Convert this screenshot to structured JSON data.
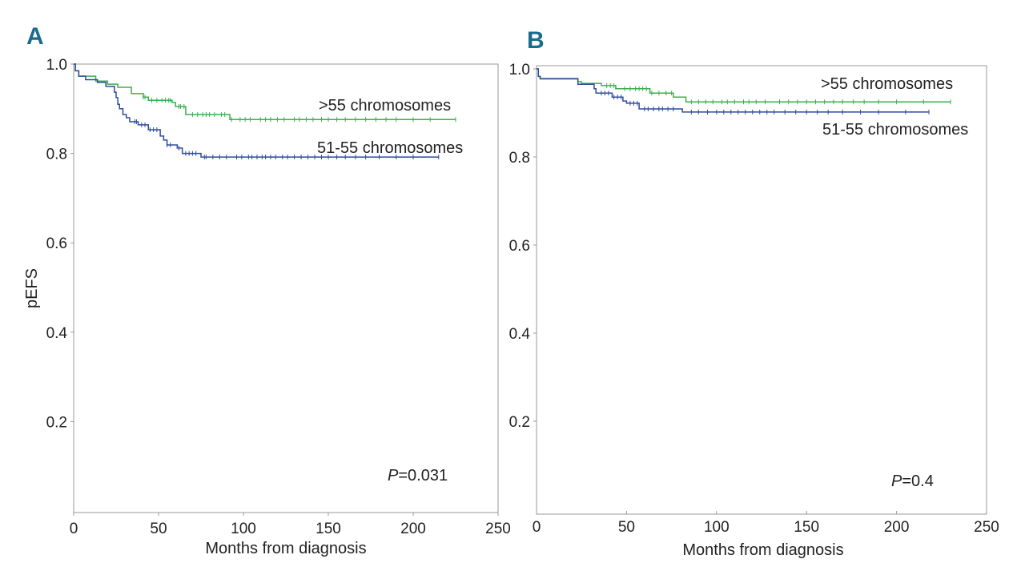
{
  "colors": {
    "green": "#3daf4e",
    "blue": "#2f4c9e",
    "panel_label": "#1b6c8c",
    "axis": "#999999"
  },
  "chart_data": [
    {
      "type": "line",
      "subtype": "kaplan-meier",
      "panel_label": "A",
      "xlabel": "Months from diagnosis",
      "ylabel": "pEFS",
      "xlim": [
        0,
        250
      ],
      "ylim": [
        0,
        1
      ],
      "xticks": [
        "0",
        "50",
        "100",
        "150",
        "200",
        "250"
      ],
      "yticks": [
        "0.2",
        "0.4",
        "0.6",
        "0.8",
        "1.0"
      ],
      "pvalue_prefix": "P",
      "pvalue_text": "=0.031",
      "series": [
        {
          "name": ">55 chromosomes",
          "color": "green",
          "steps": [
            [
              0,
              1.0
            ],
            [
              1,
              0.985
            ],
            [
              3,
              0.973
            ],
            [
              13,
              0.962
            ],
            [
              20,
              0.955
            ],
            [
              26,
              0.948
            ],
            [
              34,
              0.934
            ],
            [
              41,
              0.926
            ],
            [
              44,
              0.919
            ],
            [
              58,
              0.914
            ],
            [
              60,
              0.905
            ],
            [
              66,
              0.887
            ],
            [
              92,
              0.876
            ]
          ],
          "end": 225,
          "censored": [
            41,
            42,
            46,
            49,
            52,
            54,
            56,
            57,
            62,
            63,
            65,
            70,
            73,
            76,
            78,
            80,
            83,
            87,
            89,
            93,
            98,
            101,
            104,
            110,
            113,
            116,
            120,
            124,
            130,
            133,
            137,
            141,
            146,
            150,
            155,
            160,
            166,
            172,
            178,
            184,
            190,
            200,
            210,
            225
          ]
        },
        {
          "name": "51-55 chromosomes",
          "color": "blue",
          "steps": [
            [
              0,
              1.0
            ],
            [
              1,
              0.985
            ],
            [
              3,
              0.973
            ],
            [
              7,
              0.965
            ],
            [
              14,
              0.959
            ],
            [
              19,
              0.95
            ],
            [
              24,
              0.937
            ],
            [
              25,
              0.925
            ],
            [
              26,
              0.91
            ],
            [
              27,
              0.9
            ],
            [
              29,
              0.887
            ],
            [
              31,
              0.88
            ],
            [
              33,
              0.871
            ],
            [
              38,
              0.864
            ],
            [
              44,
              0.853
            ],
            [
              51,
              0.839
            ],
            [
              53,
              0.83
            ],
            [
              55,
              0.819
            ],
            [
              61,
              0.812
            ],
            [
              64,
              0.8
            ],
            [
              75,
              0.792
            ]
          ],
          "end": 215,
          "censored": [
            36,
            37,
            40,
            42,
            45,
            47,
            49,
            55,
            57,
            62,
            66,
            68,
            70,
            72,
            77,
            78,
            82,
            86,
            90,
            96,
            99,
            103,
            105,
            108,
            111,
            113,
            116,
            119,
            123,
            126,
            130,
            134,
            138,
            142,
            146,
            150,
            155,
            160,
            166,
            172,
            180,
            190,
            200,
            215
          ]
        }
      ]
    },
    {
      "type": "line",
      "subtype": "kaplan-meier",
      "panel_label": "B",
      "xlabel": "Months from diagnosis",
      "ylabel": "",
      "xlim": [
        0,
        250
      ],
      "ylim": [
        0,
        1
      ],
      "xticks": [
        "0",
        "50",
        "100",
        "150",
        "200",
        "250"
      ],
      "yticks": [
        "0.2",
        "0.4",
        "0.6",
        "0.8",
        "1.0"
      ],
      "pvalue_prefix": "P",
      "pvalue_text": "=0.4",
      "series": [
        {
          "name": ">55 chromosomes",
          "color": "green",
          "steps": [
            [
              0,
              1.0
            ],
            [
              1,
              0.983
            ],
            [
              2,
              0.977
            ],
            [
              23,
              0.971
            ],
            [
              25,
              0.967
            ],
            [
              36,
              0.962
            ],
            [
              44,
              0.955
            ],
            [
              63,
              0.945
            ],
            [
              76,
              0.936
            ],
            [
              83,
              0.925
            ]
          ],
          "end": 230,
          "censored": [
            39,
            41,
            43,
            49,
            52,
            55,
            57,
            59,
            61,
            64,
            68,
            72,
            75,
            86,
            90,
            94,
            98,
            103,
            106,
            110,
            115,
            118,
            122,
            127,
            135,
            140,
            145,
            150,
            155,
            160,
            165,
            170,
            176,
            182,
            190,
            200,
            215,
            230
          ]
        },
        {
          "name": "51-55 chromosomes",
          "color": "blue",
          "steps": [
            [
              0,
              1.0
            ],
            [
              1,
              0.983
            ],
            [
              2,
              0.978
            ],
            [
              23,
              0.965
            ],
            [
              32,
              0.955
            ],
            [
              33,
              0.945
            ],
            [
              42,
              0.936
            ],
            [
              48,
              0.927
            ],
            [
              50,
              0.922
            ],
            [
              57,
              0.909
            ],
            [
              81,
              0.902
            ]
          ],
          "end": 218,
          "censored": [
            36,
            38,
            40,
            43,
            45,
            47,
            52,
            54,
            56,
            60,
            62,
            65,
            68,
            70,
            73,
            76,
            86,
            90,
            95,
            100,
            104,
            108,
            112,
            116,
            120,
            124,
            128,
            132,
            138,
            144,
            150,
            156,
            162,
            170,
            180,
            190,
            205,
            218
          ]
        }
      ]
    }
  ]
}
